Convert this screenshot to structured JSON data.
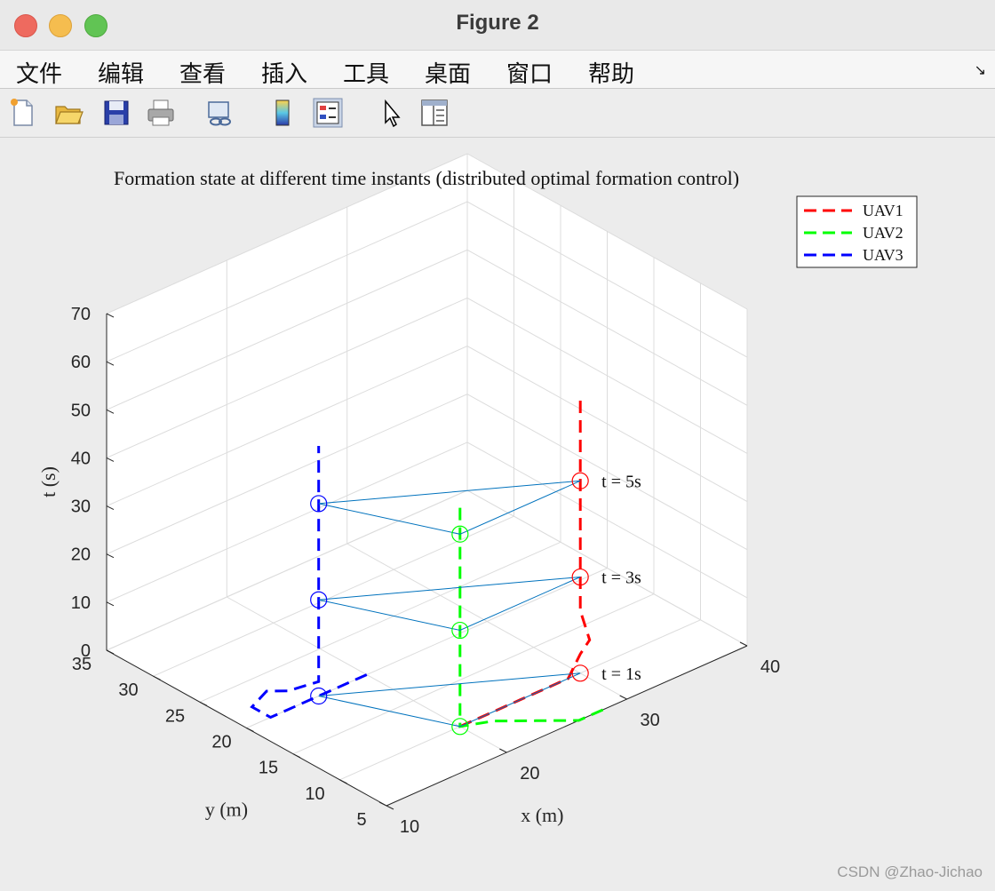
{
  "window": {
    "title": "Figure 2"
  },
  "menu": [
    "文件",
    "编辑",
    "查看",
    "插入",
    "工具",
    "桌面",
    "窗口",
    "帮助"
  ],
  "toolbar": {
    "icons": [
      "new-figure-icon",
      "open-file-icon",
      "save-icon",
      "print-icon",
      "link-plot-icon",
      "insert-colorbar-icon",
      "insert-legend-icon",
      "edit-plot-arrow-icon",
      "property-inspector-icon"
    ]
  },
  "watermark": "CSDN @Zhao-Jichao",
  "chart_data": {
    "type": "line3d",
    "title": "Formation state at different time instants (distributed optimal formation control)",
    "xlabel": "x (m)",
    "ylabel": "y (m)",
    "zlabel": "t (s)",
    "xlim": [
      10,
      40
    ],
    "ylim": [
      5,
      35
    ],
    "zlim": [
      0,
      70
    ],
    "xticks": [
      "10",
      "20",
      "30",
      "40"
    ],
    "yticks": [
      "5",
      "10",
      "15",
      "20",
      "25",
      "30",
      "35"
    ],
    "zticks": [
      "0",
      "10",
      "20",
      "30",
      "40",
      "50",
      "60",
      "70"
    ],
    "grid": true,
    "legend_position": "top-right",
    "series": [
      {
        "name": "UAV1",
        "color": "#ff0000",
        "points": [
          [
            20,
            10,
            0
          ],
          [
            25,
            10,
            0
          ],
          [
            29,
            10,
            0
          ],
          [
            30,
            10,
            4
          ],
          [
            30,
            9,
            8
          ],
          [
            30,
            10,
            13
          ],
          [
            30,
            10,
            17
          ],
          [
            30,
            10,
            21
          ],
          [
            30,
            10,
            26
          ],
          [
            30,
            10,
            35
          ],
          [
            30,
            10,
            43
          ],
          [
            30,
            10,
            52
          ],
          [
            30,
            10,
            57
          ]
        ]
      },
      {
        "name": "UAV2",
        "color": "#00ff00",
        "points": [
          [
            28,
            5,
            0
          ],
          [
            26,
            5,
            0
          ],
          [
            24,
            7,
            0
          ],
          [
            22,
            9,
            0
          ],
          [
            20,
            10,
            0
          ],
          [
            20,
            10,
            4
          ],
          [
            20,
            10,
            8
          ],
          [
            20,
            10,
            15
          ],
          [
            20,
            10,
            20
          ],
          [
            20,
            10,
            24
          ],
          [
            20,
            10,
            30
          ],
          [
            20,
            10,
            35
          ],
          [
            20,
            10,
            41
          ],
          [
            20,
            10,
            46
          ]
        ]
      },
      {
        "name": "UAV3",
        "color": "#0000ff",
        "points": [
          [
            20,
            20,
            0
          ],
          [
            16,
            20,
            0
          ],
          [
            12,
            20,
            0
          ],
          [
            12,
            22,
            0
          ],
          [
            14,
            23,
            0
          ],
          [
            15,
            22,
            0
          ],
          [
            16,
            20,
            3
          ],
          [
            16,
            20,
            8
          ],
          [
            16,
            20,
            14
          ],
          [
            16,
            20,
            20
          ],
          [
            16,
            20,
            25
          ],
          [
            16,
            20,
            30
          ],
          [
            16,
            20,
            37
          ],
          [
            16,
            20,
            43
          ],
          [
            16,
            20,
            52
          ]
        ]
      }
    ],
    "formations": [
      {
        "label": "t = 1s",
        "t": 0,
        "uav1": [
          30,
          10
        ],
        "uav2": [
          20,
          10
        ],
        "uav3": [
          16,
          20
        ]
      },
      {
        "label": "t = 3s",
        "t": 20,
        "uav1": [
          30,
          10
        ],
        "uav2": [
          20,
          10
        ],
        "uav3": [
          16,
          20
        ]
      },
      {
        "label": "t = 5s",
        "t": 40,
        "uav1": [
          30,
          10
        ],
        "uav2": [
          20,
          10
        ],
        "uav3": [
          16,
          20
        ]
      }
    ],
    "formation_line_color": "#0072bd"
  }
}
